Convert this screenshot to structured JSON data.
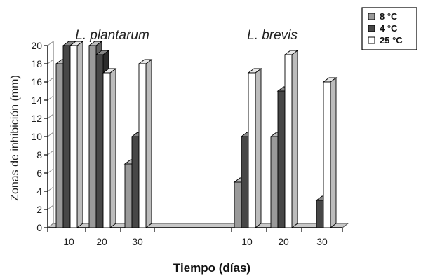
{
  "chart_data": {
    "type": "bar",
    "title": "",
    "xlabel": "Tiempo (días)",
    "ylabel": "Zonas de inhibición (mm)",
    "ylim": [
      0,
      20
    ],
    "yticks": [
      0,
      2,
      4,
      6,
      8,
      10,
      12,
      14,
      16,
      18,
      20
    ],
    "groups": [
      {
        "name": "L. plantarum",
        "categories": [
          "10",
          "20",
          "30"
        ],
        "series": [
          {
            "name": "8 °C",
            "values": [
              18,
              20,
              7
            ]
          },
          {
            "name": "4 °C",
            "values": [
              20,
              19,
              10
            ]
          },
          {
            "name": "25 °C",
            "values": [
              20,
              17,
              18
            ]
          }
        ]
      },
      {
        "name": "L. brevis",
        "categories": [
          "10",
          "20",
          "30"
        ],
        "series": [
          {
            "name": "8 °C",
            "values": [
              5,
              10,
              0
            ]
          },
          {
            "name": "4 °C",
            "values": [
              10,
              15,
              3
            ]
          },
          {
            "name": "25 °C",
            "values": [
              17,
              19,
              16
            ]
          }
        ]
      }
    ],
    "legend": {
      "position": "top-right",
      "entries": [
        {
          "label": "8 °C",
          "color": "#9a9a9a"
        },
        {
          "label": "4 °C",
          "color": "#474747"
        },
        {
          "label": "25 °C",
          "color": "#ffffff"
        }
      ]
    },
    "grid": false
  }
}
